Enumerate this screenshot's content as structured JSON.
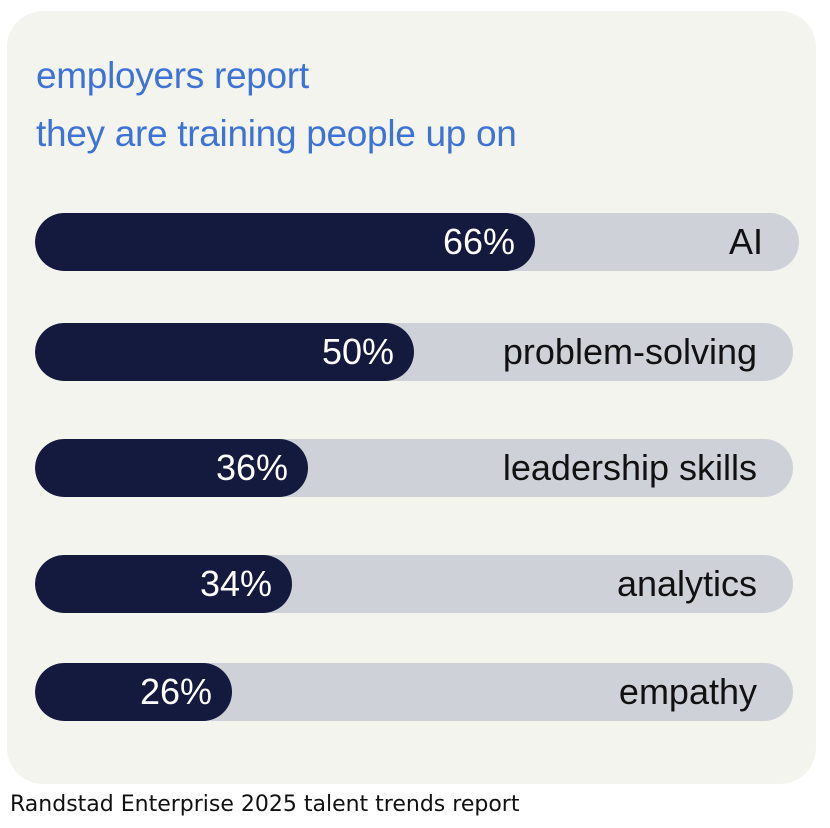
{
  "chart_data": {
    "type": "bar",
    "orientation": "horizontal",
    "title_lines": [
      "employers report",
      "they are training people up on"
    ],
    "categories": [
      "AI",
      "problem-solving",
      "leadership skills",
      "analytics",
      "empathy"
    ],
    "values": [
      66,
      50,
      36,
      34,
      26
    ],
    "value_labels": [
      "66%",
      "50%",
      "36%",
      "34%",
      "26%"
    ],
    "xlim": [
      0,
      100
    ],
    "grid": false,
    "legend": "none"
  },
  "colors": {
    "background": "#f4f4ef",
    "title": "#3d72d6",
    "bar_fill": "#131a3e",
    "bar_track": "#cfd1d9",
    "value_text": "#ffffff",
    "label_text": "#111111"
  },
  "caption": "Randstad Enterprise 2025 talent trends report"
}
